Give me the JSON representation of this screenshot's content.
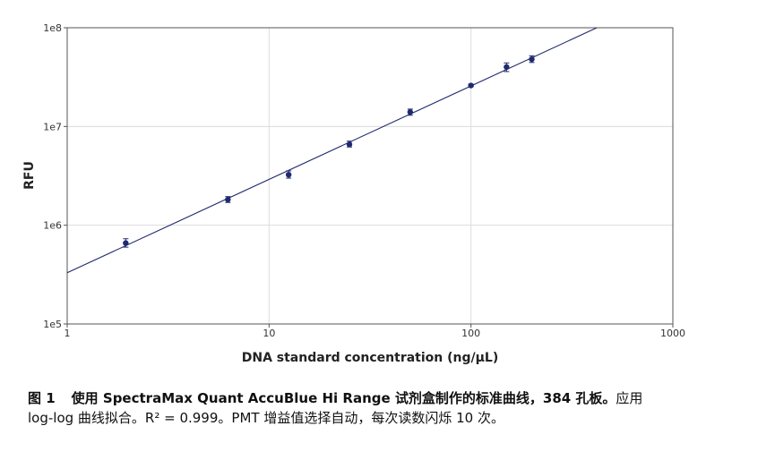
{
  "chart_data": {
    "type": "scatter",
    "title": "",
    "xlabel": "DNA standard concentration (ng/μL)",
    "ylabel": "RFU",
    "x_scale": "log",
    "y_scale": "log",
    "xlim": [
      1,
      1000
    ],
    "ylim": [
      100000,
      100000000
    ],
    "x_ticks": [
      1,
      10,
      100,
      1000
    ],
    "x_tick_labels": [
      "1",
      "10",
      "100",
      "1000"
    ],
    "y_ticks": [
      100000,
      1000000,
      10000000,
      100000000
    ],
    "y_tick_labels": [
      "1e5",
      "1e6",
      "1e7",
      "1e8"
    ],
    "grid": true,
    "legend": "none",
    "color": "#1f2a6e",
    "points": [
      {
        "x": 1.95,
        "y": 660000,
        "err_low": 600000,
        "err_high": 730000
      },
      {
        "x": 6.25,
        "y": 1820000,
        "err_low": 1700000,
        "err_high": 1950000
      },
      {
        "x": 12.5,
        "y": 3250000,
        "err_low": 3000000,
        "err_high": 3550000
      },
      {
        "x": 25,
        "y": 6600000,
        "err_low": 6200000,
        "err_high": 7100000
      },
      {
        "x": 50,
        "y": 14000000,
        "err_low": 13000000,
        "err_high": 15000000
      },
      {
        "x": 100,
        "y": 26000000,
        "err_low": 25400000,
        "err_high": 26800000
      },
      {
        "x": 150,
        "y": 40000000,
        "err_low": 36000000,
        "err_high": 44000000
      },
      {
        "x": 200,
        "y": 48000000,
        "err_low": 44500000,
        "err_high": 52000000
      }
    ],
    "fit_line": {
      "x": [
        1,
        420
      ],
      "y": [
        330000,
        100000000
      ]
    }
  },
  "caption": {
    "figure_label": "图 1",
    "title_bold": "使用 SpectraMax Quant AccuBlue Hi Range 试剂盒制作的标准曲线，384 孔板。",
    "line1_rest": "应用",
    "line2": "log-log 曲线拟合。R² = 0.999。PMT 增益值选择自动，每次读数闪烁 10 次。"
  }
}
